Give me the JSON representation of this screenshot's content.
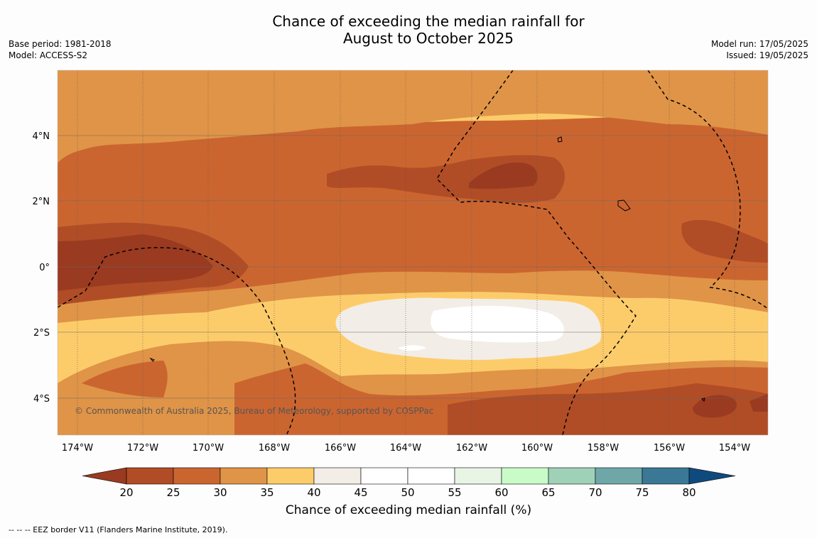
{
  "title_line1": "Chance of exceeding the median rainfall for",
  "title_line2": "August to October 2025",
  "meta_left": {
    "base_period": "Base period: 1981-2018",
    "model": "Model: ACCESS-S2"
  },
  "meta_right": {
    "model_run": "Model run: 17/05/2025",
    "issued": "Issued: 19/05/2025"
  },
  "copyright": "© Commonwealth of Australia 2025, Bureau of Meteorology, supported by COSPPac",
  "footnote": "-- -- -- EEZ border V11 (Flanders Marine Institute, 2019).",
  "map": {
    "lat_labels": [
      "4°N",
      "2°N",
      "0°",
      "2°S",
      "4°S"
    ],
    "lon_labels": [
      "174°W",
      "172°W",
      "170°W",
      "168°W",
      "166°W",
      "164°W",
      "162°W",
      "160°W",
      "158°W",
      "156°W",
      "154°W"
    ]
  },
  "colorbar": {
    "label": "Chance of exceeding median rainfall (%)",
    "ticks": [
      "20",
      "25",
      "30",
      "35",
      "40",
      "45",
      "50",
      "55",
      "60",
      "65",
      "70",
      "75",
      "80"
    ],
    "colors": [
      "#9a3a20",
      "#b04d26",
      "#cb6530",
      "#e09447",
      "#fdcc6a",
      "#f2ede6",
      "#ffffff",
      "#ffffff",
      "#e8f5e5",
      "#c9fbc9",
      "#9fd1b8",
      "#6fa7a9",
      "#3a7896",
      "#0f4a7e"
    ]
  }
}
